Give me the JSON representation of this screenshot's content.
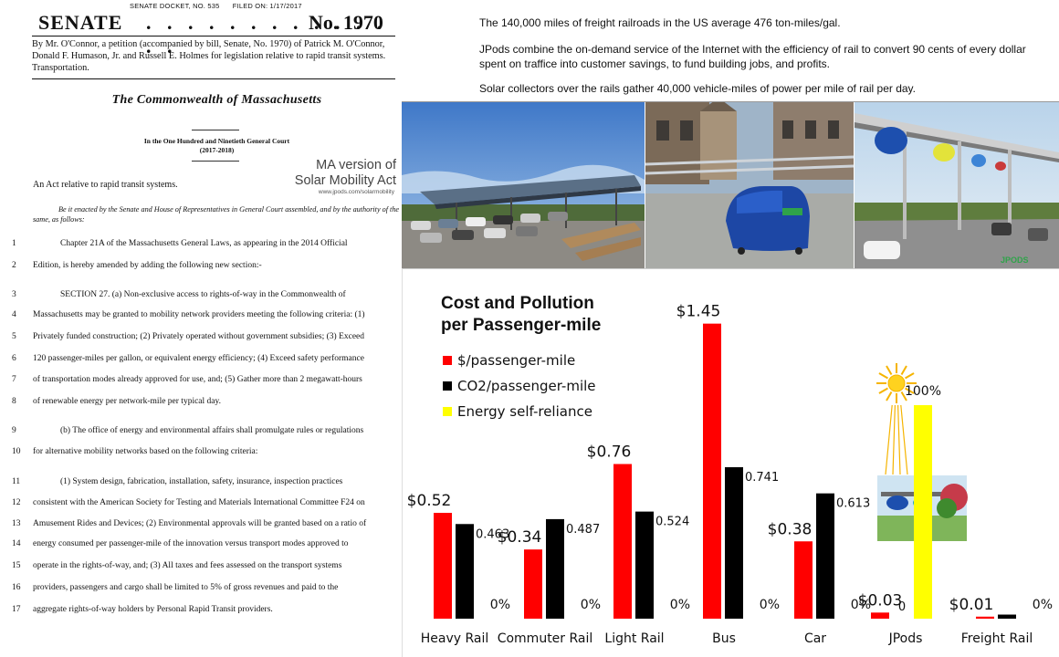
{
  "document": {
    "docket_no": "SENATE DOCKET, NO. 535",
    "filed_on": "FILED ON: 1/17/2017",
    "senate": "SENATE",
    "dots": ". . . . . . . . . . . . . .",
    "bill_no": "No. 1970",
    "byline": "By Mr. O'Connor, a petition (accompanied by bill, Senate, No. 1970) of Patrick M. O'Connor, Donald F. Humason, Jr. and Russell E. Holmes for legislation relative to rapid transit systems. Transportation.",
    "commonwealth": "The Commonwealth of Massachusetts",
    "court_line1": "In the One Hundred and Ninetieth General Court",
    "court_line2": "(2017-2018)",
    "ma_label_1": "MA version of",
    "ma_label_2": "Solar Mobility Act",
    "ma_url": "www.jpods.com/solarmobility",
    "act_title": "An Act relative to rapid transit systems.",
    "enacting": "Be it enacted by the Senate and House of Representatives in General Court assembled, and by the authority of the same, as follows:",
    "lines": [
      {
        "num": "1",
        "text": "Chapter 21A of the Massachusetts General Laws, as appearing in the 2014 Official",
        "indent": true
      },
      {
        "num": "2",
        "text": "Edition, is hereby amended by adding the following new section:-",
        "indent": false
      },
      {
        "num": "3",
        "text": "SECTION 27. (a) Non-exclusive access to rights-of-way in the Commonwealth of",
        "indent": true
      },
      {
        "num": "4",
        "text": "Massachusetts may be granted to mobility network providers meeting the following criteria: (1)",
        "indent": false
      },
      {
        "num": "5",
        "text": "Privately funded construction; (2) Privately operated without government subsidies; (3) Exceed",
        "indent": false
      },
      {
        "num": "6",
        "text": "120 passenger-miles per gallon, or equivalent energy efficiency; (4) Exceed safety performance",
        "indent": false
      },
      {
        "num": "7",
        "text": "of transportation modes already approved for use, and; (5) Gather more than 2 megawatt-hours",
        "indent": false
      },
      {
        "num": "8",
        "text": "of renewable energy per network-mile per typical day.",
        "indent": false
      },
      {
        "num": "9",
        "text": "(b) The office of energy and environmental affairs shall promulgate rules or regulations",
        "indent": true
      },
      {
        "num": "10",
        "text": "for alternative mobility networks based on the following criteria:",
        "indent": false
      },
      {
        "num": "11",
        "text": "(1) System design, fabrication, installation, safety, insurance, inspection practices",
        "indent": true
      },
      {
        "num": "12",
        "text": "consistent with the American Society for Testing and Materials International Committee F24 on",
        "indent": false
      },
      {
        "num": "13",
        "text": "Amusement Rides and Devices; (2) Environmental approvals will be granted based on a ratio of",
        "indent": false
      },
      {
        "num": "14",
        "text": "energy consumed per passenger-mile of the innovation versus transport modes approved to",
        "indent": false
      },
      {
        "num": "15",
        "text": "operate in the rights-of-way, and; (3) All taxes and fees assessed on the transport systems",
        "indent": false
      },
      {
        "num": "16",
        "text": "providers, passengers and cargo shall be limited to 5% of gross revenues and paid to the",
        "indent": false
      },
      {
        "num": "17",
        "text": "aggregate rights-of-way holders by Personal Rapid Transit providers.",
        "indent": false
      }
    ]
  },
  "info": {
    "p1": "The 140,000 miles of freight railroads in the US average 476 ton-miles/gal.",
    "p2": "JPods combine the on-demand service of the Internet with the efficiency of rail to convert 90 cents of every dollar spent on traffice into customer savings, to fund building jobs, and profits.",
    "p3": "Solar collectors over the rails gather 40,000 vehicle-miles of power per mile of rail per day."
  },
  "photos": {
    "logo_text": "JPODS"
  },
  "colors": {
    "cost": "#ff0000",
    "co2": "#000000",
    "solar": "#ffff00",
    "sun": "#f5b400"
  },
  "chart_data": {
    "type": "bar",
    "title_line1": "Cost and Pollution",
    "title_line2": "per Passenger-mile",
    "categories": [
      "Heavy Rail",
      "Commuter Rail",
      "Light Rail",
      "Bus",
      "Car",
      "JPods",
      "Freight Rail"
    ],
    "series": [
      {
        "name": "$/passenger-mile",
        "key": "cost",
        "values": [
          0.52,
          0.34,
          0.76,
          1.45,
          0.38,
          0.03,
          0.01
        ],
        "labels": [
          "$0.52",
          "$0.34",
          "$0.76",
          "$1.45",
          "$0.38",
          "$0.03",
          "$0.01"
        ]
      },
      {
        "name": "CO2/passenger-mile",
        "key": "co2",
        "values": [
          0.463,
          0.487,
          0.524,
          0.741,
          0.613,
          0,
          0.02
        ],
        "labels": [
          "0.463",
          "0.487",
          "0.524",
          "0.741",
          "0.613",
          "0",
          ""
        ]
      },
      {
        "name": "Energy self-reliance",
        "key": "solar",
        "values": [
          0,
          0,
          0,
          0,
          0,
          100,
          0
        ],
        "labels": [
          "0%",
          "0%",
          "0%",
          "0%",
          "0%",
          "100%",
          "0%"
        ]
      }
    ],
    "grid": false,
    "legend": "top-left"
  }
}
